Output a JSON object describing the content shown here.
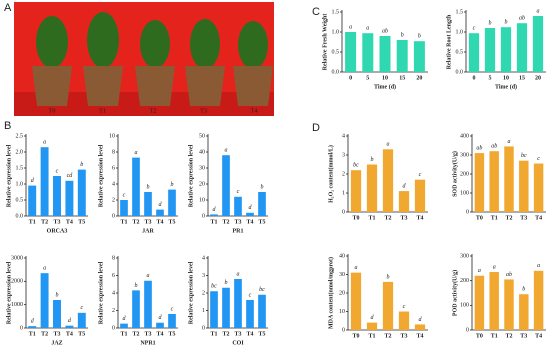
{
  "panel_labels": [
    "A",
    "B",
    "C",
    "D"
  ],
  "photo_labels": [
    "T0",
    "T1",
    "T2",
    "T3",
    "T4"
  ],
  "chart_data": [
    {
      "type": "bar",
      "ylabel": "Relative expression level",
      "xlabel": "ORCA3",
      "categories": [
        "T1",
        "T2",
        "T3",
        "T4",
        "T5"
      ],
      "values": [
        0.95,
        2.15,
        1.25,
        1.1,
        1.45
      ],
      "letters": [
        "d",
        "a",
        "c",
        "cd",
        "b"
      ],
      "color": "#2196f3",
      "ylim": [
        0,
        2.5
      ],
      "yticks": [
        {
          "value": 0,
          "label": "0.0"
        },
        {
          "value": 0.5,
          "label": "0.5"
        },
        {
          "value": 1,
          "label": "1.0"
        },
        {
          "value": 1.5,
          "label": "1.5"
        },
        {
          "value": 2,
          "label": "2.0"
        },
        {
          "value": 2.5,
          "label": "2.5"
        }
      ]
    },
    {
      "type": "bar",
      "ylabel": "Relative expression level",
      "xlabel": "JAR",
      "categories": [
        "T1",
        "T2",
        "T3",
        "T4",
        "T5"
      ],
      "values": [
        2,
        7.3,
        3,
        0.8,
        3.3
      ],
      "letters": [
        "c",
        "a",
        "b",
        "d",
        "b"
      ],
      "color": "#2196f3",
      "ylim": [
        0,
        10
      ],
      "yticks": [
        0,
        2,
        4,
        6,
        8,
        10
      ]
    },
    {
      "type": "bar",
      "ylabel": "Relative expression level",
      "xlabel": "PR1",
      "categories": [
        "T1",
        "T2",
        "T3",
        "T4",
        "T5"
      ],
      "values": [
        1,
        38,
        12,
        2,
        15
      ],
      "letters": [
        "d",
        "a",
        "c",
        "d",
        "b"
      ],
      "color": "#2196f3",
      "ylim": [
        0,
        50
      ],
      "yticks": [
        0,
        10,
        20,
        30,
        40,
        50
      ]
    },
    {
      "type": "bar",
      "ylabel": "Relative expression level",
      "xlabel": "JAZ",
      "categories": [
        "T1",
        "T2",
        "T3",
        "T4",
        "T5"
      ],
      "values": [
        80,
        2350,
        1200,
        100,
        650
      ],
      "letters": [
        "d",
        "a",
        "b",
        "d",
        "c"
      ],
      "color": "#2196f3",
      "ylim": [
        0,
        3000
      ],
      "yticks": [
        0,
        1000,
        2000,
        3000
      ]
    },
    {
      "type": "bar",
      "ylabel": "Relative expression level",
      "xlabel": "NPR1",
      "categories": [
        "T1",
        "T2",
        "T3",
        "T4",
        "T5"
      ],
      "values": [
        0.5,
        4.3,
        5.4,
        0.6,
        1.6
      ],
      "letters": [
        "d",
        "b",
        "a",
        "d",
        "c"
      ],
      "color": "#2196f3",
      "ylim": [
        0,
        8
      ],
      "yticks": [
        0,
        2,
        4,
        6,
        8
      ]
    },
    {
      "type": "bar",
      "ylabel": "Relative expression level",
      "xlabel": "COI",
      "categories": [
        "T1",
        "T2",
        "T3",
        "T4",
        "T5"
      ],
      "values": [
        2.1,
        2.3,
        2.8,
        1.6,
        1.9
      ],
      "letters": [
        "bc",
        "b",
        "a",
        "c",
        "bc"
      ],
      "color": "#2196f3",
      "ylim": [
        0,
        4
      ],
      "yticks": [
        0,
        1,
        2,
        3,
        4
      ]
    },
    {
      "type": "bar",
      "ylabel": "Relative Fresh Weight",
      "xlabel": "Time (d)",
      "categories": [
        "0",
        "5",
        "10",
        "15",
        "20"
      ],
      "values": [
        1.0,
        0.97,
        0.9,
        0.8,
        0.77
      ],
      "letters": [
        "a",
        "a",
        "ab",
        "b",
        "b"
      ],
      "color": "#2fd8b0",
      "ylim": [
        0,
        1.5
      ],
      "yticks": [
        {
          "value": 0,
          "label": "0.0"
        },
        {
          "value": 0.5,
          "label": "0.5"
        },
        {
          "value": 1,
          "label": "1.0"
        },
        {
          "value": 1.5,
          "label": "1.5"
        }
      ]
    },
    {
      "type": "bar",
      "ylabel": "Relative Root Length",
      "xlabel": "Time (d)",
      "categories": [
        "0",
        "5",
        "10",
        "15",
        "20"
      ],
      "values": [
        0.97,
        1.1,
        1.12,
        1.22,
        1.4
      ],
      "letters": [
        "c",
        "b",
        "b",
        "ab",
        "a"
      ],
      "color": "#2fd8b0",
      "ylim": [
        0,
        1.5
      ],
      "yticks": [
        {
          "value": 0,
          "label": "0.0"
        },
        {
          "value": 0.5,
          "label": "0.5"
        },
        {
          "value": 1,
          "label": "1.0"
        },
        {
          "value": 1.5,
          "label": "1.5"
        }
      ]
    },
    {
      "type": "bar",
      "ylabel": "H₂O₂ content(mmol/L)",
      "categories": [
        "T0",
        "T1",
        "T2",
        "T3",
        "T4"
      ],
      "values": [
        2.2,
        2.5,
        3.3,
        1.1,
        1.7
      ],
      "letters": [
        "bc",
        "b",
        "a",
        "d",
        "c"
      ],
      "color": "#f0a830",
      "ylim": [
        0,
        4
      ],
      "yticks": [
        0,
        1,
        2,
        3,
        4
      ]
    },
    {
      "type": "bar",
      "ylabel": "SOD activity(U/g)",
      "categories": [
        "T0",
        "T1",
        "T2",
        "T3",
        "T4"
      ],
      "values": [
        310,
        320,
        345,
        270,
        255
      ],
      "letters": [
        "ab",
        "ab",
        "a",
        "bc",
        "c"
      ],
      "color": "#f0a830",
      "ylim": [
        0,
        400
      ],
      "yticks": [
        0,
        100,
        200,
        300,
        400
      ]
    },
    {
      "type": "bar",
      "ylabel": "MDA content(nmol/mgprot)",
      "categories": [
        "T0",
        "T1",
        "T2",
        "T3",
        "T4"
      ],
      "values": [
        31,
        4,
        26,
        10,
        3
      ],
      "letters": [
        "a",
        "d",
        "b",
        "c",
        "d"
      ],
      "color": "#f0a830",
      "ylim": [
        0,
        40
      ],
      "yticks": [
        0,
        10,
        20,
        30,
        40
      ]
    },
    {
      "type": "bar",
      "ylabel": "POD activity(U/g)",
      "categories": [
        "T0",
        "T1",
        "T2",
        "T3",
        "T4"
      ],
      "values": [
        220,
        235,
        205,
        145,
        240
      ],
      "letters": [
        "a",
        "a",
        "ab",
        "b",
        "a"
      ],
      "color": "#f0a830",
      "ylim": [
        0,
        300
      ],
      "yticks": [
        0,
        100,
        200,
        300
      ]
    }
  ]
}
